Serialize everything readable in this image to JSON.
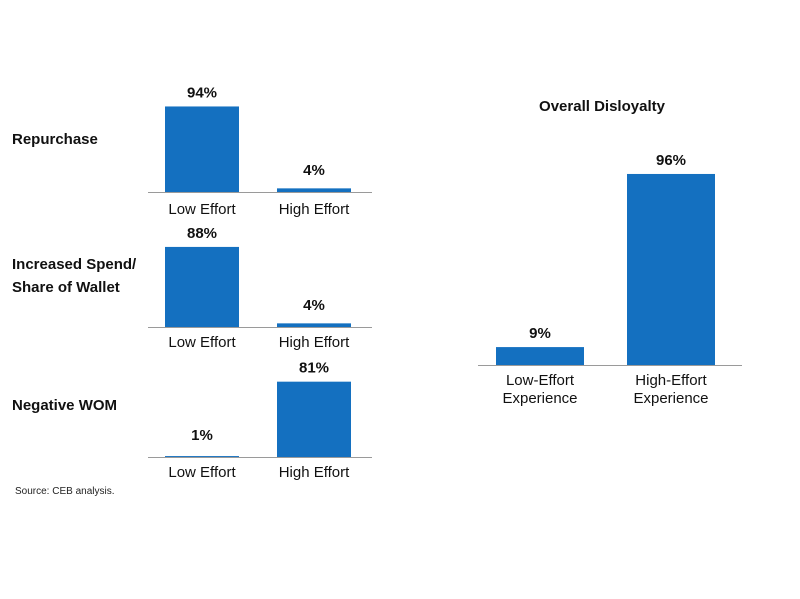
{
  "source": "Source: CEB analysis.",
  "colors": {
    "bar": "#1470c0",
    "axis": "#9a9a9a",
    "text": "#111111"
  },
  "chart_data": [
    {
      "type": "bar",
      "title": "Repurchase",
      "categories": [
        "Low Effort",
        "High Effort"
      ],
      "values": [
        94,
        4
      ],
      "data_labels": [
        "94%",
        "4%"
      ],
      "ylim": [
        0,
        100
      ]
    },
    {
      "type": "bar",
      "title": "Increased Spend/ Share of Wallet",
      "title_lines": [
        "Increased Spend/",
        "Share of Wallet"
      ],
      "categories": [
        "Low Effort",
        "High Effort"
      ],
      "values": [
        88,
        4
      ],
      "data_labels": [
        "88%",
        "4%"
      ],
      "ylim": [
        0,
        100
      ]
    },
    {
      "type": "bar",
      "title": "Negative WOM",
      "categories": [
        "Low Effort",
        "High Effort"
      ],
      "values": [
        1,
        81
      ],
      "data_labels": [
        "1%",
        "81%"
      ],
      "ylim": [
        0,
        100
      ]
    },
    {
      "type": "bar",
      "title": "Overall Disloyalty",
      "categories": [
        "Low-Effort Experience",
        "High-Effort Experience"
      ],
      "category_lines": [
        [
          "Low-Effort",
          "Experience"
        ],
        [
          "High-Effort",
          "Experience"
        ]
      ],
      "values": [
        9,
        96
      ],
      "data_labels": [
        "9%",
        "96%"
      ],
      "ylim": [
        0,
        100
      ]
    }
  ]
}
